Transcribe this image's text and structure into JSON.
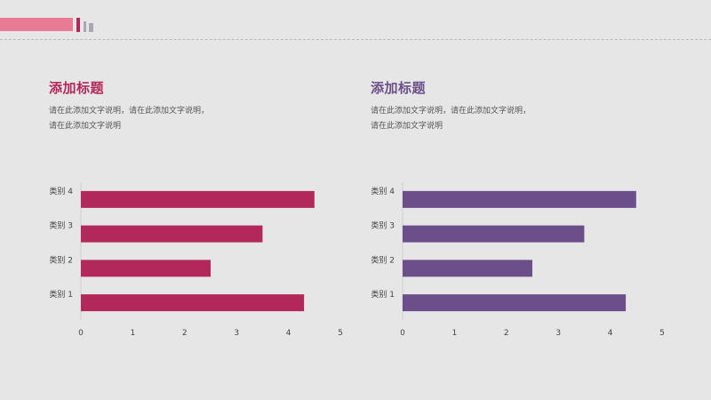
{
  "panels": [
    {
      "title": "添加标题",
      "description_lines": [
        "请在此添加文字说明，请在此添加文字说明，",
        "请在此添加文字说明"
      ]
    },
    {
      "title": "添加标题",
      "description_lines": [
        "请在此添加文字说明，请在此添加文字说明，",
        "请在此添加文字说明"
      ]
    }
  ],
  "chart_data": [
    {
      "type": "bar",
      "orientation": "horizontal",
      "categories": [
        "类别 1",
        "类别 2",
        "类别 3",
        "类别 4"
      ],
      "values": [
        4.3,
        2.5,
        3.5,
        4.5
      ],
      "xlim": [
        0,
        5
      ],
      "xticks": [
        "0",
        "1",
        "2",
        "3",
        "4",
        "5"
      ],
      "color": "#b3285a",
      "grid": false
    },
    {
      "type": "bar",
      "orientation": "horizontal",
      "categories": [
        "类别 1",
        "类别 2",
        "类别 3",
        "类别 4"
      ],
      "values": [
        4.3,
        2.5,
        3.5,
        4.5
      ],
      "xlim": [
        0,
        5
      ],
      "xticks": [
        "0",
        "1",
        "2",
        "3",
        "4",
        "5"
      ],
      "color": "#6c4f8a",
      "grid": false
    }
  ]
}
